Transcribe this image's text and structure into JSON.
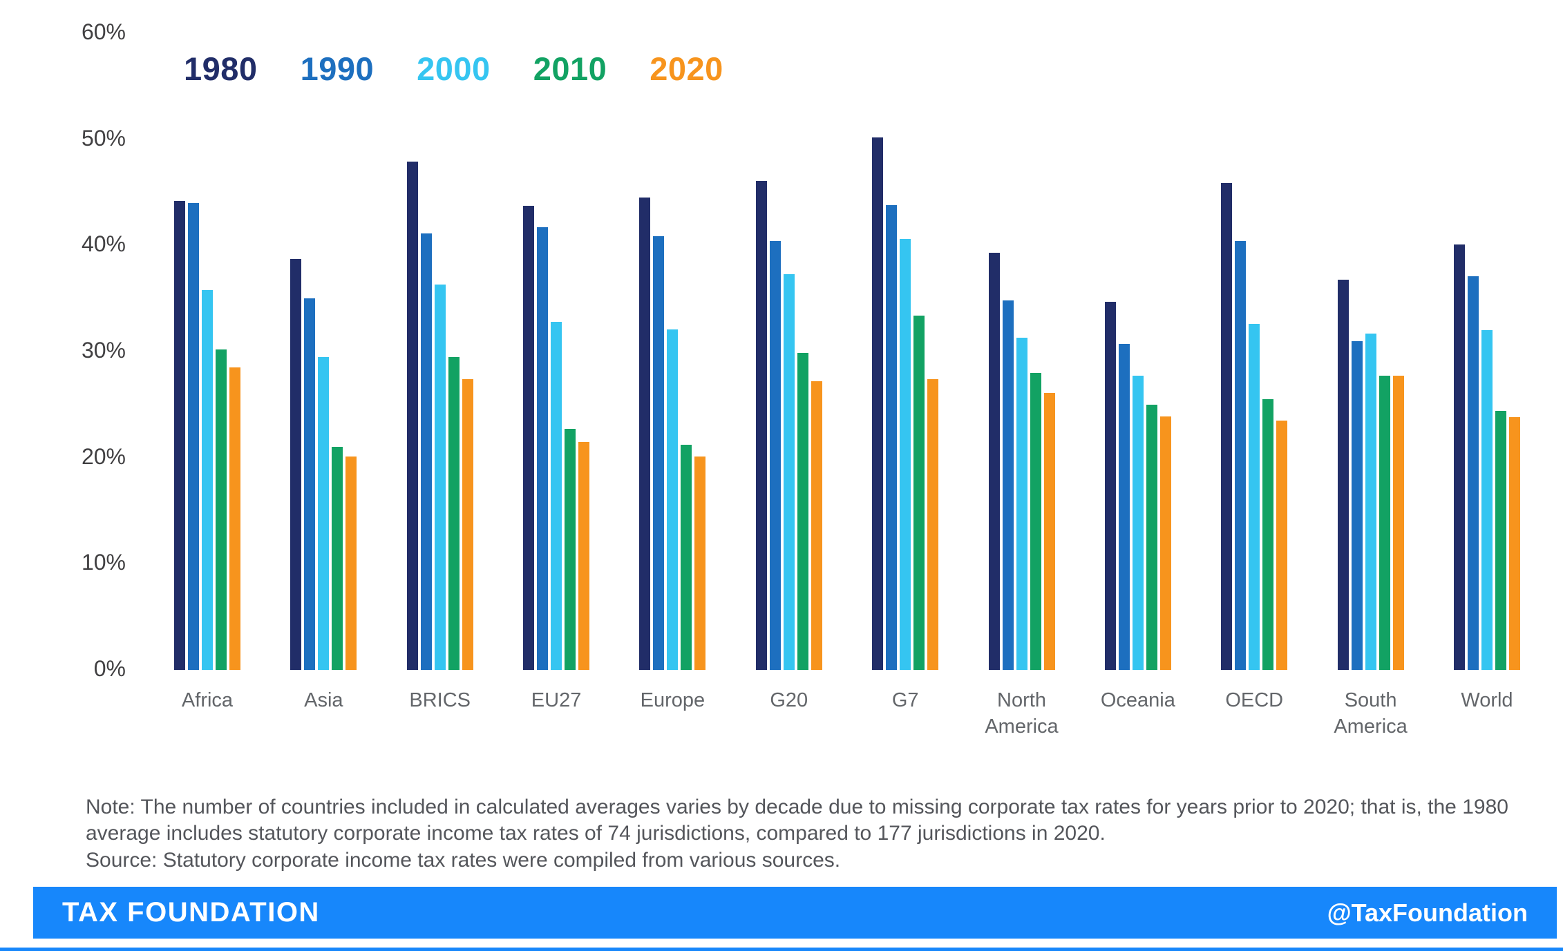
{
  "chart_data": {
    "type": "bar",
    "title": "",
    "categories": [
      "Africa",
      "Asia",
      "BRICS",
      "EU27",
      "Europe",
      "G20",
      "G7",
      "North America",
      "Oceania",
      "OECD",
      "South America",
      "World"
    ],
    "series": [
      {
        "name": "1980",
        "color": "#212d68",
        "values": [
          44.2,
          38.7,
          47.9,
          43.7,
          44.5,
          46.1,
          50.2,
          39.3,
          34.7,
          45.9,
          36.8,
          40.1
        ]
      },
      {
        "name": "1990",
        "color": "#1d6fbf",
        "values": [
          44.0,
          35.0,
          41.1,
          41.7,
          40.9,
          40.4,
          43.8,
          34.8,
          30.7,
          40.4,
          31.0,
          37.1
        ]
      },
      {
        "name": "2000",
        "color": "#35c5f1",
        "values": [
          35.8,
          29.5,
          36.3,
          32.8,
          32.1,
          37.3,
          40.6,
          31.3,
          27.7,
          32.6,
          31.7,
          32.0
        ]
      },
      {
        "name": "2010",
        "color": "#12a263",
        "values": [
          30.2,
          21.0,
          29.5,
          22.7,
          21.2,
          29.9,
          33.4,
          28.0,
          25.0,
          25.5,
          27.7,
          24.4
        ]
      },
      {
        "name": "2020",
        "color": "#f7941d",
        "values": [
          28.5,
          20.1,
          27.4,
          21.5,
          20.1,
          27.2,
          27.4,
          26.1,
          23.9,
          23.5,
          27.7,
          23.8
        ]
      }
    ],
    "ylim": [
      0,
      60
    ],
    "ytick_labels": [
      "60%",
      "50%",
      "40%",
      "30%",
      "20%",
      "10%",
      "0%"
    ],
    "grid": false,
    "legend_position": "top-left"
  },
  "note": {
    "note_text": "Note: The number of countries included in calculated averages varies by decade due to missing corporate tax rates for years prior to 2020; that is, the 1980 average includes statutory corporate income tax rates of 74 jurisdictions, compared to 177 jurisdictions in 2020.",
    "source_text": "Source: Statutory corporate income tax rates were compiled from various sources."
  },
  "footer": {
    "brand": "TAX FOUNDATION",
    "handle": "@TaxFoundation"
  }
}
